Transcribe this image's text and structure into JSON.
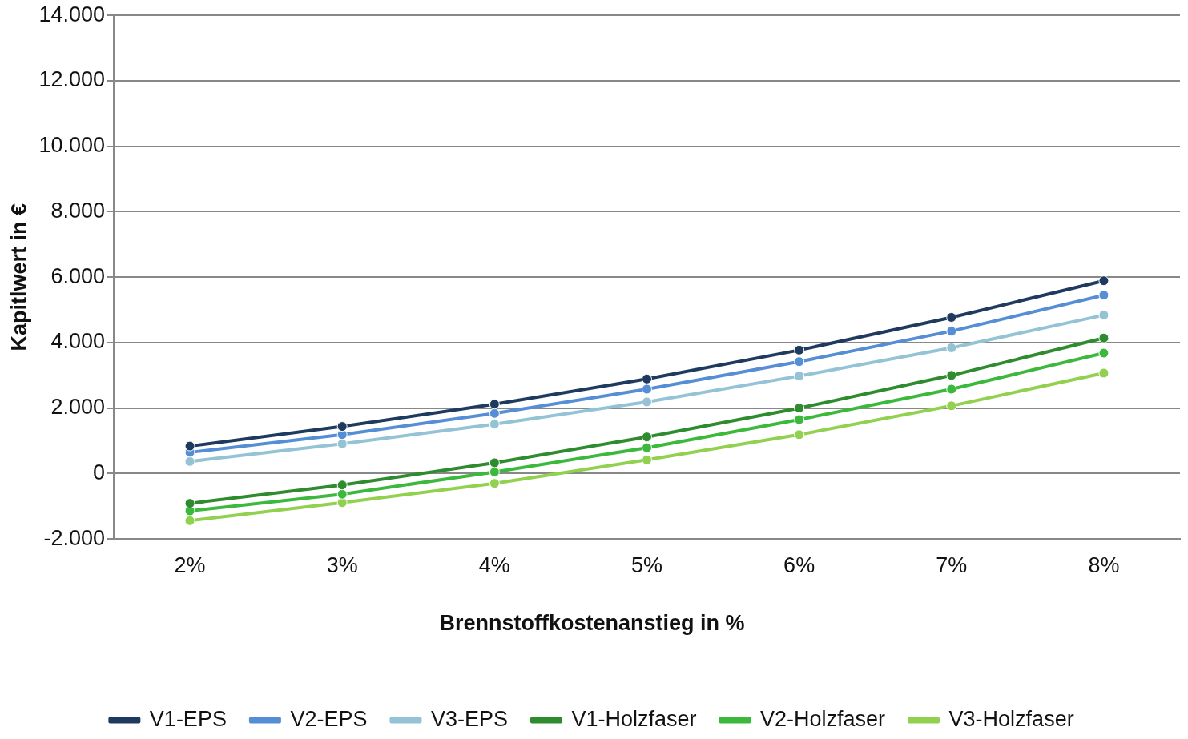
{
  "chart_data": {
    "type": "line",
    "xlabel": "Brennstoffkostenanstieg in %",
    "ylabel": "Kapitlwert in €",
    "categories": [
      "2%",
      "3%",
      "4%",
      "5%",
      "6%",
      "7%",
      "8%"
    ],
    "series": [
      {
        "name": "V1-EPS",
        "color": "#1f3a5f",
        "values": [
          840,
          1440,
          2120,
          2890,
          3770,
          4770,
          5890
        ]
      },
      {
        "name": "V2-EPS",
        "color": "#558ed5",
        "values": [
          650,
          1190,
          1840,
          2580,
          3420,
          4350,
          5450
        ]
      },
      {
        "name": "V3-EPS",
        "color": "#93c3d5",
        "values": [
          370,
          910,
          1510,
          2190,
          2980,
          3840,
          4840
        ]
      },
      {
        "name": "V1-Holzfaser",
        "color": "#2e8b2e",
        "values": [
          -910,
          -350,
          330,
          1120,
          2000,
          3000,
          4140
        ]
      },
      {
        "name": "V2-Holzfaser",
        "color": "#3cb83c",
        "values": [
          -1140,
          -630,
          50,
          790,
          1650,
          2580,
          3680
        ]
      },
      {
        "name": "V3-Holzfaser",
        "color": "#92d050",
        "values": [
          -1440,
          -890,
          -300,
          420,
          1190,
          2070,
          3070
        ]
      }
    ],
    "ylim": [
      -2000,
      14000
    ],
    "yticks": [
      {
        "value": -2000,
        "label": "-2.000"
      },
      0,
      {
        "value": 2000,
        "label": "2.000"
      },
      {
        "value": 4000,
        "label": "4.000"
      },
      {
        "value": 6000,
        "label": "6.000"
      },
      {
        "value": 8000,
        "label": "8.000"
      },
      {
        "value": 10000,
        "label": "10.000"
      },
      {
        "value": 12000,
        "label": "12.000"
      },
      {
        "value": 14000,
        "label": "14.000"
      }
    ],
    "grid": "y",
    "legend": "bottom",
    "marker": "circle",
    "line_style": "solid"
  }
}
